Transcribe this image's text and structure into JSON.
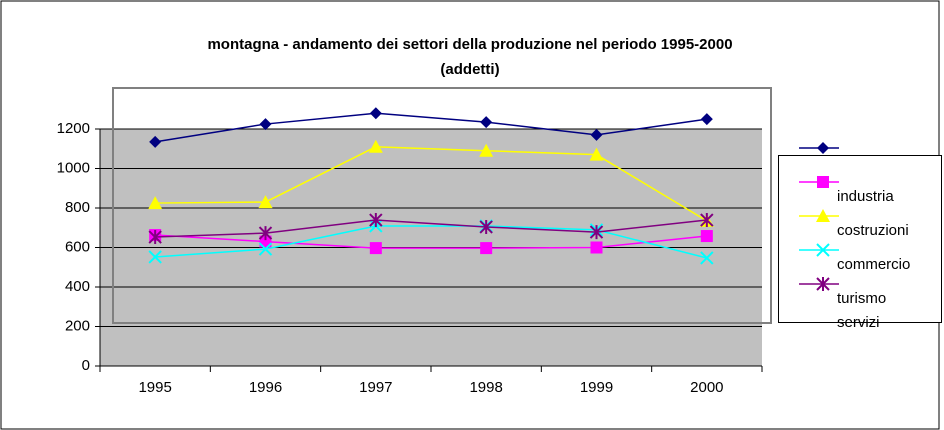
{
  "chart_data": {
    "type": "line",
    "title": [
      "montagna - andamento dei settori della produzione nel periodo 1995-2000",
      "(addetti)"
    ],
    "categories": [
      "1995",
      "1996",
      "1997",
      "1998",
      "1999",
      "2000"
    ],
    "series": [
      {
        "name": null,
        "color": "#000080",
        "marker": "diamond",
        "values": [
          1135,
          1225,
          1280,
          1235,
          1170,
          1250
        ]
      },
      {
        "name": "industria",
        "color": "#ff00ff",
        "marker": "square",
        "values": [
          663,
          630,
          597,
          597,
          600,
          658
        ]
      },
      {
        "name": "costruzioni",
        "color": "#ffff00",
        "marker": "triangle",
        "values": [
          825,
          830,
          1110,
          1090,
          1070,
          735
        ]
      },
      {
        "name": "commercio",
        "color": "#00ffff",
        "marker": "x",
        "values": [
          552,
          592,
          709,
          709,
          689,
          547
        ]
      },
      {
        "name": "turismo servizi",
        "color": "#800080",
        "marker": "star",
        "values": [
          653,
          673,
          739,
          704,
          678,
          739
        ]
      }
    ],
    "ylim": [
      0,
      1200
    ],
    "yticks": [
      0,
      200,
      400,
      600,
      800,
      1000,
      1200
    ],
    "grid": true
  }
}
